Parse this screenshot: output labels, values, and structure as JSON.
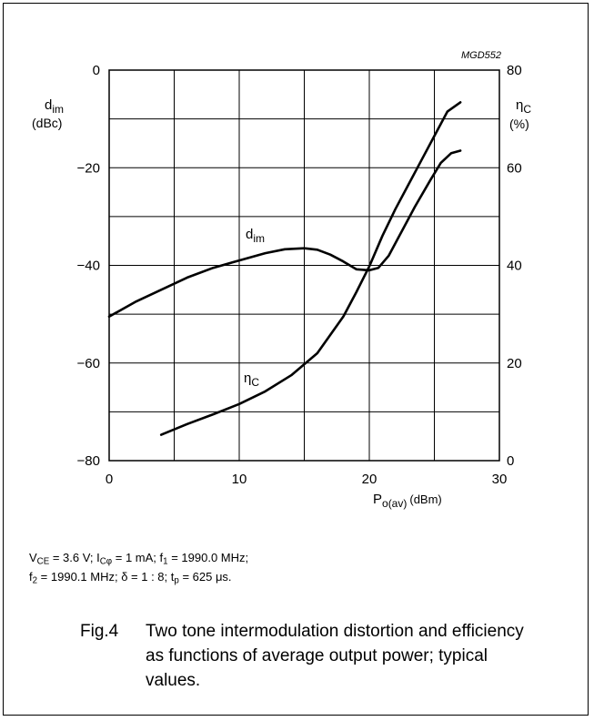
{
  "chart_data": {
    "type": "line",
    "id_label": "MGD552",
    "x": {
      "label_main": "P",
      "label_sub": "o(av)",
      "label_unit": "(dBm)",
      "range": [
        0,
        30
      ],
      "tick_labels": [
        "0",
        "10",
        "20",
        "30"
      ]
    },
    "y_left": {
      "label_main": "d",
      "label_sub": "im",
      "label_unit": "(dBc)",
      "range": [
        -80,
        0
      ],
      "tick_labels": [
        "0",
        "−20",
        "−40",
        "−60",
        "−80"
      ]
    },
    "y_right": {
      "label_main": "η",
      "label_sub": "C",
      "label_unit": "(%)",
      "range": [
        0,
        80
      ],
      "tick_labels": [
        "80",
        "60",
        "40",
        "20",
        "0"
      ]
    },
    "grid": true,
    "series": [
      {
        "name_main": "d",
        "name_sub": "im",
        "axis": "left",
        "points": [
          [
            0,
            -50.5
          ],
          [
            2,
            -47.5
          ],
          [
            4,
            -45
          ],
          [
            6,
            -42.5
          ],
          [
            8,
            -40.5
          ],
          [
            10,
            -39
          ],
          [
            12,
            -37.5
          ],
          [
            13.5,
            -36.7
          ],
          [
            15,
            -36.5
          ],
          [
            16,
            -36.8
          ],
          [
            17,
            -37.8
          ],
          [
            18,
            -39.2
          ],
          [
            19,
            -40.8
          ],
          [
            20,
            -41
          ],
          [
            20.7,
            -40.5
          ],
          [
            21.5,
            -38
          ],
          [
            22.3,
            -34
          ],
          [
            23.5,
            -28
          ],
          [
            24.7,
            -22.5
          ],
          [
            25.5,
            -19
          ],
          [
            26.3,
            -17
          ],
          [
            27,
            -16.5
          ]
        ]
      },
      {
        "name_main": "η",
        "name_sub": "C",
        "axis": "right",
        "points": [
          [
            4,
            5.3
          ],
          [
            6,
            7.5
          ],
          [
            8,
            9.5
          ],
          [
            10,
            11.6
          ],
          [
            12,
            14.2
          ],
          [
            14,
            17.5
          ],
          [
            16,
            22
          ],
          [
            18,
            29.5
          ],
          [
            19,
            34.5
          ],
          [
            20,
            39.8
          ],
          [
            21,
            46
          ],
          [
            22,
            51.5
          ],
          [
            23,
            56.5
          ],
          [
            24,
            61.5
          ],
          [
            25,
            66.5
          ],
          [
            26,
            71.5
          ],
          [
            27,
            73.4
          ]
        ]
      }
    ]
  },
  "conditions": {
    "line1": {
      "v_sym": "V",
      "v_sub": "CE",
      "v_text": " = 3.6 V; ",
      "i_sym": "I",
      "i_sub": "Cφ",
      "i_text": " = 1 mA; ",
      "f1_sym": "f",
      "f1_sub": "1",
      "f1_text": " = 1990.0 MHz;"
    },
    "line2": {
      "f2_sym": "f",
      "f2_sub": "2",
      "f2_text": " = 1990.1 MHz; δ = 1 : 8; ",
      "t_sym": "t",
      "t_sub": "p",
      "t_text": " = 625 μs."
    }
  },
  "caption": {
    "figure_number": "Fig.4",
    "text": "Two tone intermodulation distortion and efficiency as functions of average output power; typical values."
  }
}
